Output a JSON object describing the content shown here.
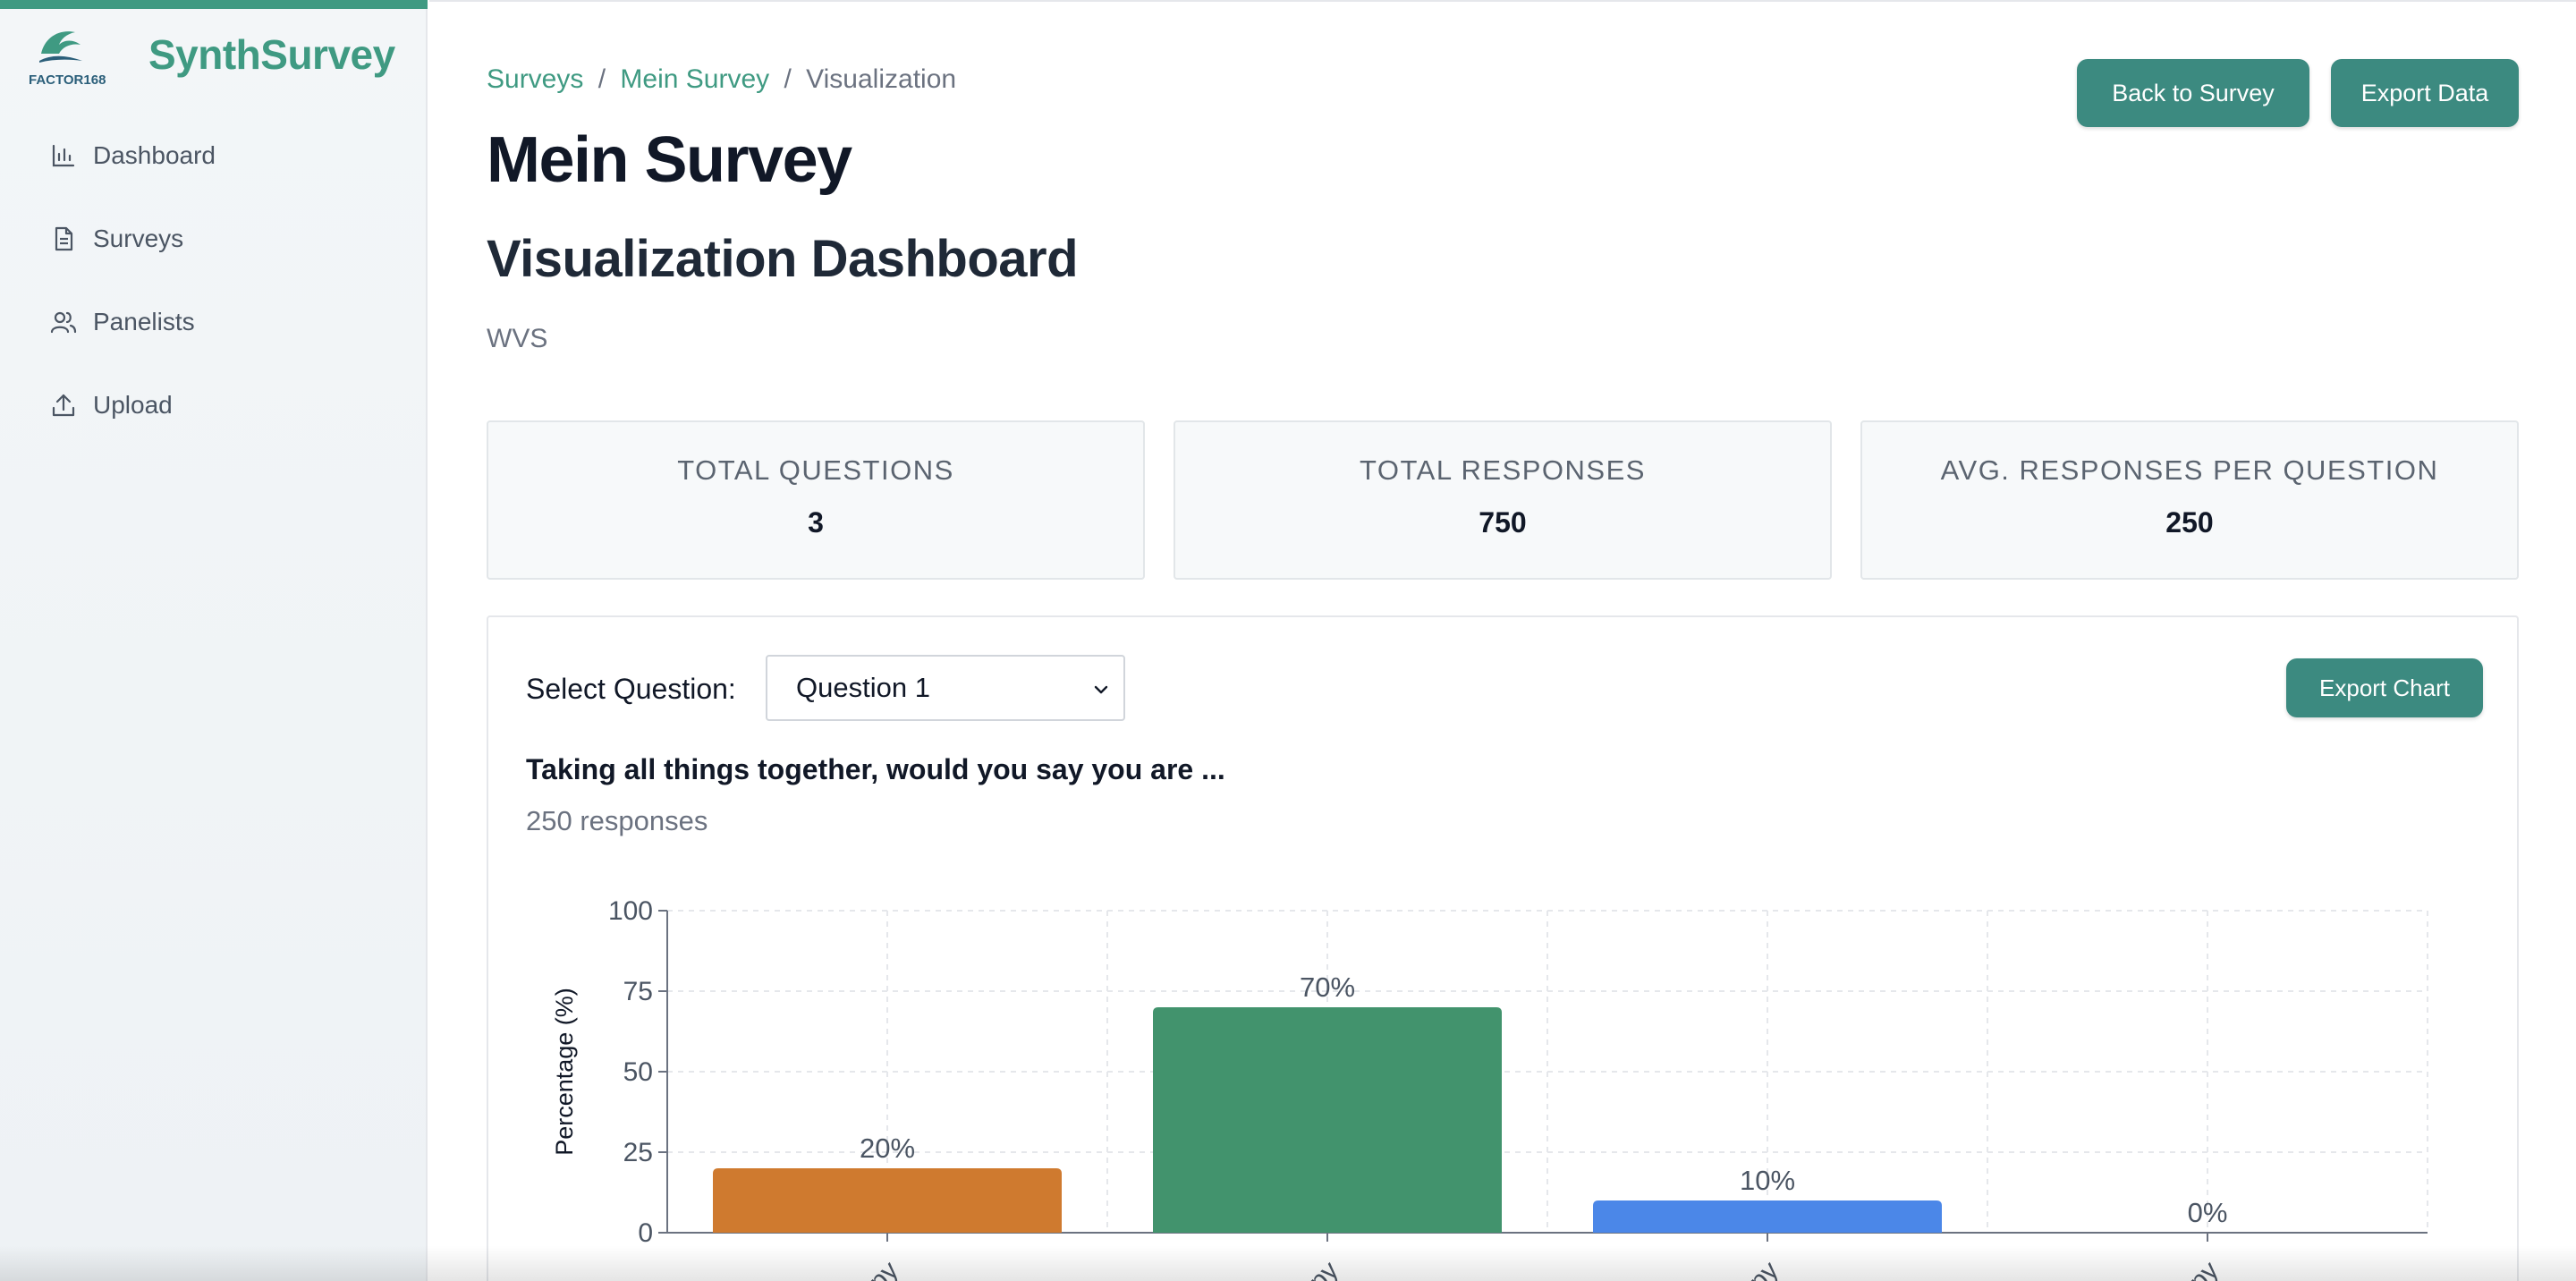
{
  "sidebar": {
    "logo_text": "FACTOR168",
    "app_name": "SynthSurvey",
    "items": [
      {
        "label": "Dashboard",
        "icon": "bar-chart-icon"
      },
      {
        "label": "Surveys",
        "icon": "document-icon"
      },
      {
        "label": "Panelists",
        "icon": "users-icon"
      },
      {
        "label": "Upload",
        "icon": "upload-icon"
      }
    ]
  },
  "breadcrumb": {
    "items": [
      "Surveys",
      "Mein Survey",
      "Visualization"
    ],
    "separator": "/"
  },
  "header": {
    "title": "Mein Survey",
    "section_title": "Visualization Dashboard",
    "subtitle": "WVS",
    "back_button": "Back to Survey",
    "export_button": "Export Data"
  },
  "stats": [
    {
      "label": "TOTAL QUESTIONS",
      "value": "3"
    },
    {
      "label": "TOTAL RESPONSES",
      "value": "750"
    },
    {
      "label": "AVG. RESPONSES PER QUESTION",
      "value": "250"
    }
  ],
  "chart_panel": {
    "select_label": "Select Question:",
    "selected_question": "Question 1",
    "export_chart_button": "Export Chart",
    "question_text": "Taking all things together, would you say you are ...",
    "responses_text": "250 responses"
  },
  "colors": {
    "accent": "#3f9a82",
    "button": "#3c8a80"
  },
  "chart_data": {
    "type": "bar",
    "categories": [
      "Very happy",
      "Quite happy",
      "Not very happy",
      "Not at all happy"
    ],
    "visible_category_tails": [
      "ppy",
      "ppy",
      "ppy",
      "ppy"
    ],
    "values": [
      20,
      70,
      10,
      0
    ],
    "value_labels": [
      "20%",
      "70%",
      "10%",
      "0%"
    ],
    "bar_colors": [
      "#cf7a2f",
      "#42936d",
      "#4b87e8",
      "#9ca3af"
    ],
    "ylabel": "Percentage (%)",
    "ylim": [
      0,
      100
    ],
    "yticks": [
      0,
      25,
      50,
      75,
      100
    ],
    "grid": true
  }
}
